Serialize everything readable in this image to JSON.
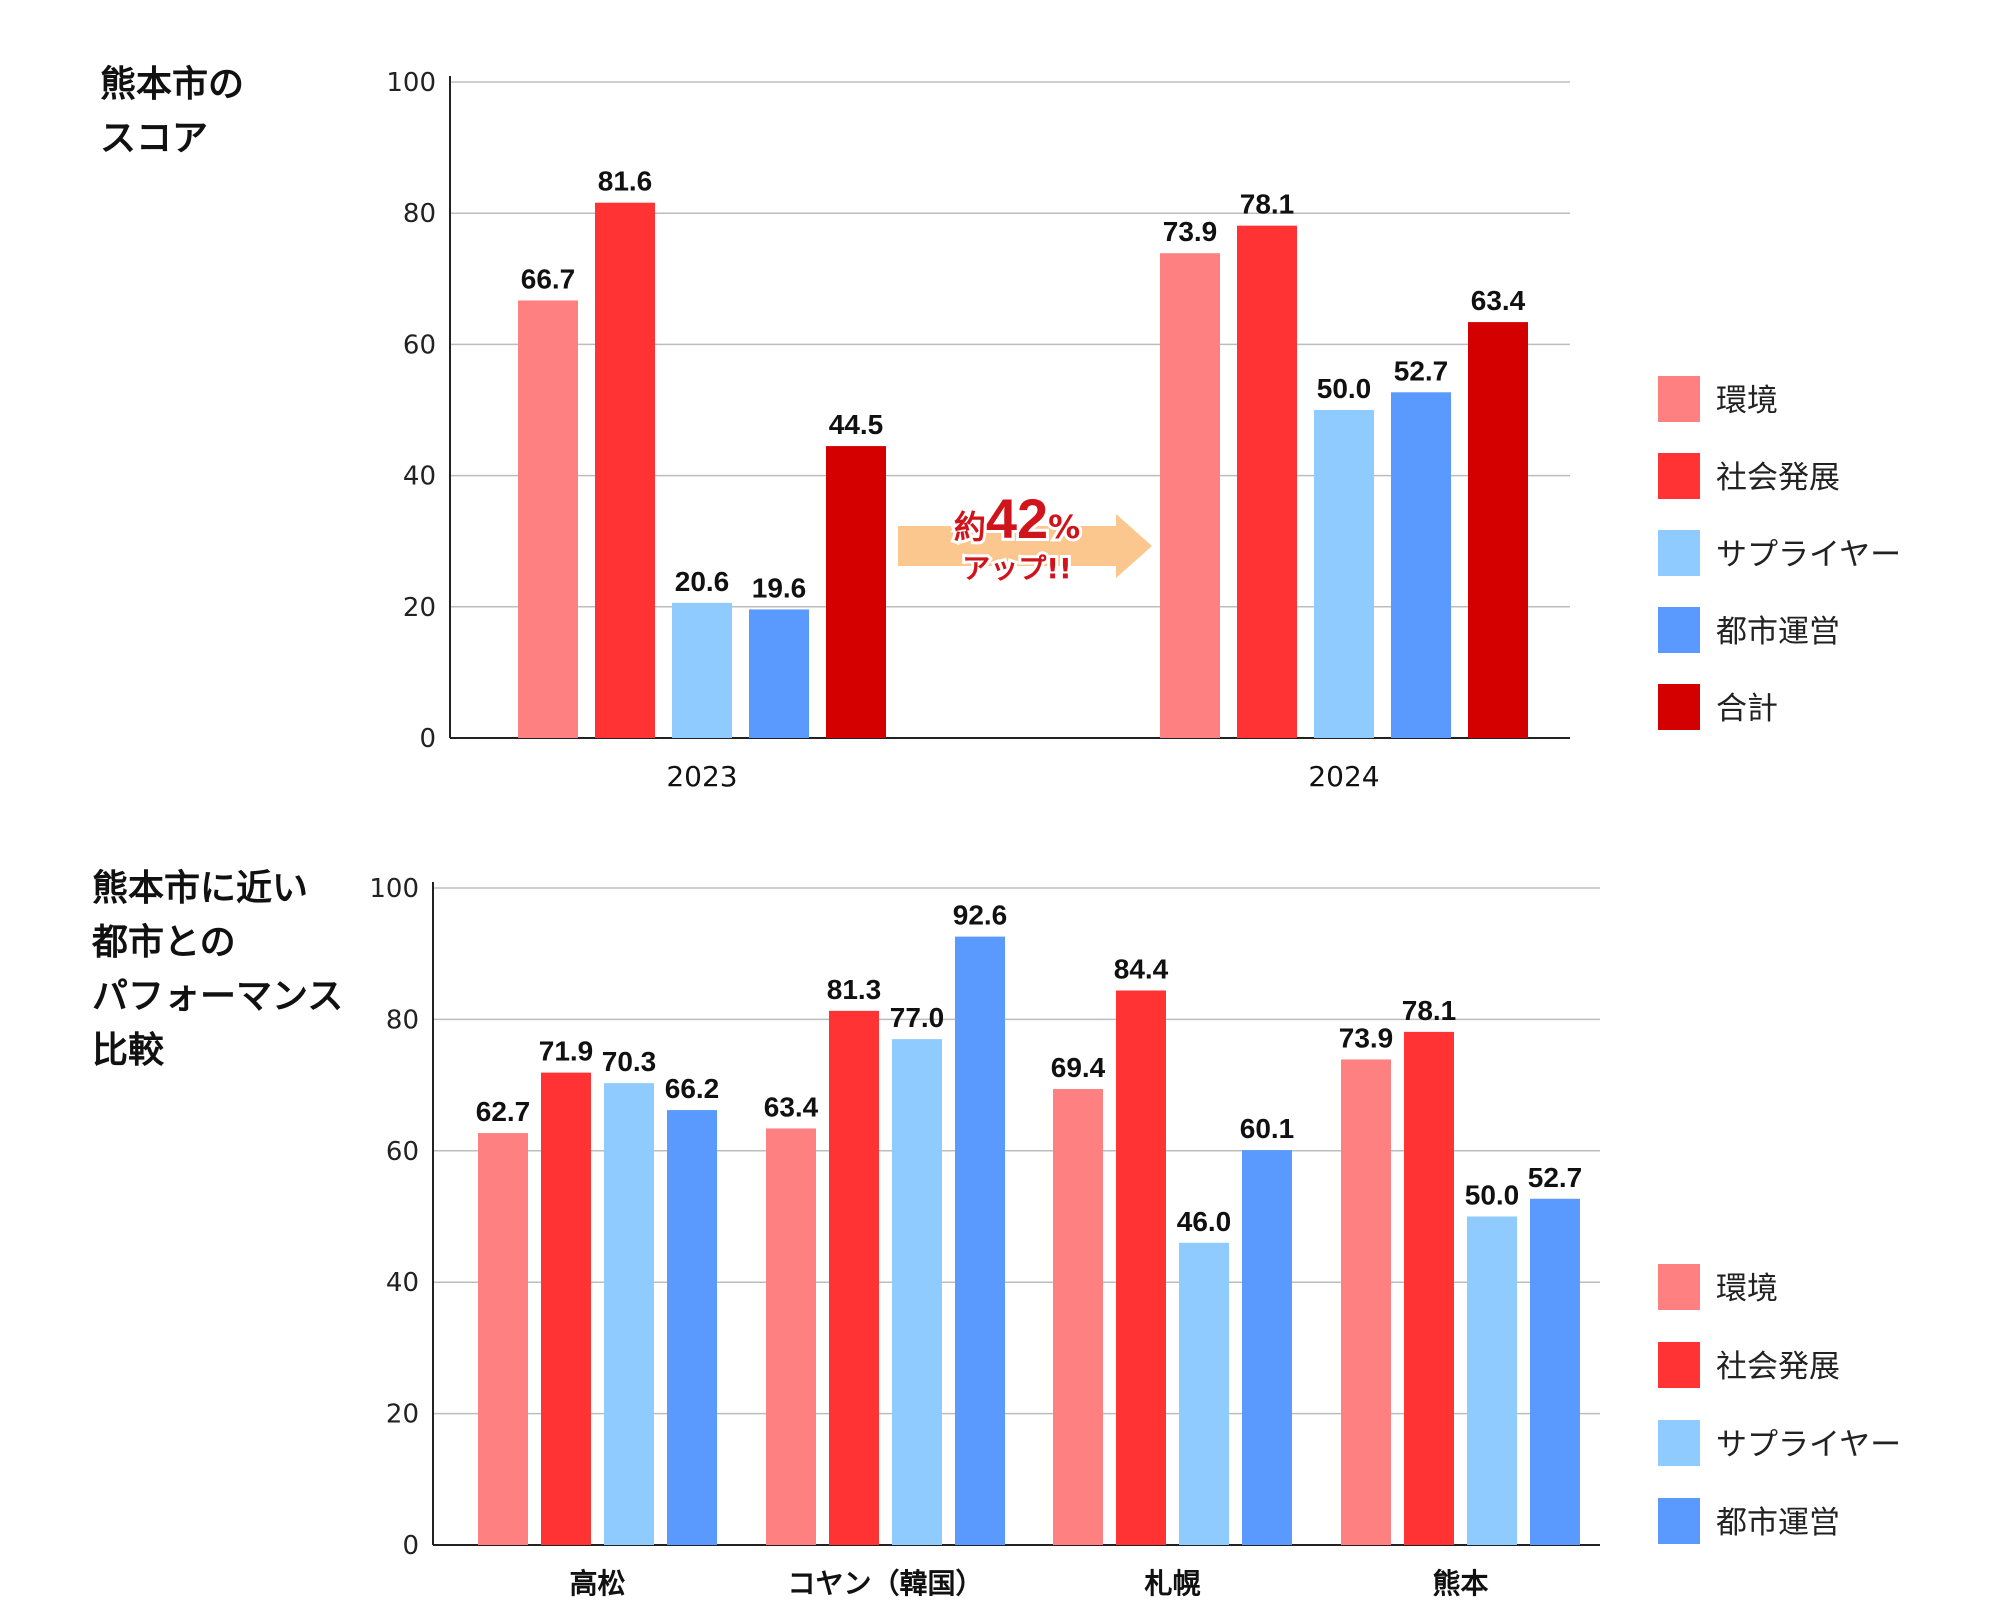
{
  "colors": {
    "環境": "#ff8080",
    "社会発展": "#ff3333",
    "サプライヤー": "#8fcbff",
    "都市運営": "#5a9aff",
    "合計": "#d40000",
    "arrow": "#fbc78e",
    "arrow_text": "#d0141b"
  },
  "arrow_callout": {
    "prefix": "約",
    "value": "42",
    "unit": "%",
    "suffix": "アップ!!"
  },
  "chart_data": [
    {
      "type": "bar",
      "title": "熊本市の\nスコア",
      "categories": [
        "2023",
        "2024"
      ],
      "ylim": [
        0,
        100
      ],
      "yticks": [
        0,
        20,
        40,
        60,
        80,
        100
      ],
      "grid": true,
      "legend_position": "right",
      "series": [
        {
          "name": "環境",
          "values": [
            66.7,
            73.9
          ]
        },
        {
          "name": "社会発展",
          "values": [
            81.6,
            78.1
          ]
        },
        {
          "name": "サプライヤー",
          "values": [
            20.6,
            50.0
          ]
        },
        {
          "name": "都市運営",
          "values": [
            19.6,
            52.7
          ]
        },
        {
          "name": "合計",
          "values": [
            44.5,
            63.4
          ]
        }
      ]
    },
    {
      "type": "bar",
      "title": "熊本市に近い\n都市との\nパフォーマンス\n比較",
      "categories": [
        "高松",
        "コヤン（韓国）",
        "札幌",
        "熊本"
      ],
      "ylim": [
        0,
        100
      ],
      "yticks": [
        0,
        20,
        40,
        60,
        80,
        100
      ],
      "grid": true,
      "legend_position": "right",
      "series": [
        {
          "name": "環境",
          "values": [
            62.7,
            63.4,
            69.4,
            73.9
          ]
        },
        {
          "name": "社会発展",
          "values": [
            71.9,
            81.3,
            84.4,
            78.1
          ]
        },
        {
          "name": "サプライヤー",
          "values": [
            70.3,
            77.0,
            46.0,
            50.0
          ]
        },
        {
          "name": "都市運営",
          "values": [
            66.2,
            92.6,
            60.1,
            52.7
          ]
        }
      ]
    }
  ]
}
